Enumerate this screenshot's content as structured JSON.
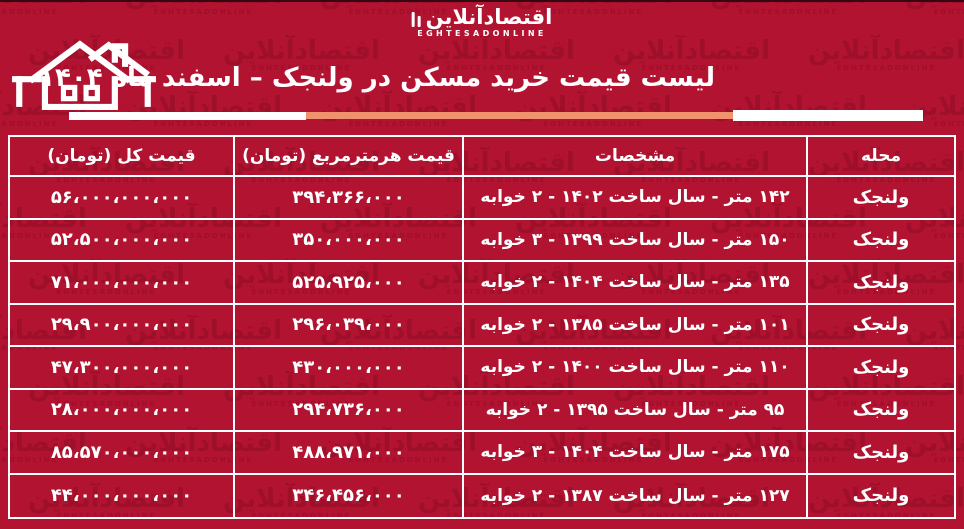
{
  "colors": {
    "background": "#B11331",
    "watermark": "#850B22",
    "border_and_text": "#FFFFFF",
    "accent_salmon": "#F0926E"
  },
  "logo": {
    "persian": "اقتصادآنلاین",
    "latin": "EGHTESADONLINE"
  },
  "watermark": {
    "persian": "اقتصادآنلاین",
    "latin": "EGHTESADONLINE"
  },
  "header": {
    "title": "لیست قیمت خرید مسکن در ولنجک – اسفند ماه ۱۴۰۴"
  },
  "table": {
    "columns": [
      "محله",
      "مشخصات",
      "قیمت هرمترمربع (تومان)",
      "قیمت کل (تومان)"
    ],
    "rows": [
      [
        "ولنجک",
        "۱۴۲ متر - سال ساخت ۱۴۰۲ - ۲ خوابه",
        "۳۹۴،۳۶۶،۰۰۰",
        "۵۶،۰۰۰،۰۰۰،۰۰۰"
      ],
      [
        "ولنجک",
        "۱۵۰ متر - سال ساخت ۱۳۹۹ - ۳ خوابه",
        "۳۵۰،۰۰۰،۰۰۰",
        "۵۲،۵۰۰،۰۰۰،۰۰۰"
      ],
      [
        "ولنجک",
        "۱۳۵ متر - سال ساخت ۱۴۰۴ - ۲ خوابه",
        "۵۲۵،۹۲۵،۰۰۰",
        "۷۱،۰۰۰،۰۰۰،۰۰۰"
      ],
      [
        "ولنجک",
        "۱۰۱ متر - سال ساخت ۱۳۸۵ - ۲ خوابه",
        "۲۹۶،۰۳۹،۰۰۰",
        "۲۹،۹۰۰،۰۰۰،۰۰۰"
      ],
      [
        "ولنجک",
        "۱۱۰ متر - سال ساخت ۱۴۰۰ - ۲ خوابه",
        "۴۳۰،۰۰۰،۰۰۰",
        "۴۷،۳۰۰،۰۰۰،۰۰۰"
      ],
      [
        "ولنجک",
        "۹۵ متر - سال ساخت ۱۳۹۵ - ۲ خوابه",
        "۲۹۴،۷۳۶،۰۰۰",
        "۲۸،۰۰۰،۰۰۰،۰۰۰"
      ],
      [
        "ولنجک",
        "۱۷۵ متر - سال ساخت ۱۴۰۴ - ۳ خوابه",
        "۴۸۸،۹۷۱،۰۰۰",
        "۸۵،۵۷۰،۰۰۰،۰۰۰"
      ],
      [
        "ولنجک",
        "۱۲۷ متر - سال ساخت ۱۳۸۷ - ۲ خوابه",
        "۳۴۶،۴۵۶،۰۰۰",
        "۴۴،۰۰۰،۰۰۰،۰۰۰"
      ]
    ]
  },
  "chart_data": {
    "type": "table",
    "title": "لیست قیمت خرید مسکن در ولنجک – اسفند ماه ۱۴۰۴",
    "columns": [
      "محله",
      "مشخصات",
      "قیمت هرمترمربع (تومان)",
      "قیمت کل (تومان)"
    ],
    "rows_numeric": [
      {
        "neighborhood": "ولنجک",
        "area_m2": 142,
        "year_built": 1402,
        "bedrooms": 2,
        "price_per_m2_toman": 394366000,
        "total_price_toman": 56000000000
      },
      {
        "neighborhood": "ولنجک",
        "area_m2": 150,
        "year_built": 1399,
        "bedrooms": 3,
        "price_per_m2_toman": 350000000,
        "total_price_toman": 52500000000
      },
      {
        "neighborhood": "ولنجک",
        "area_m2": 135,
        "year_built": 1404,
        "bedrooms": 2,
        "price_per_m2_toman": 525925000,
        "total_price_toman": 71000000000
      },
      {
        "neighborhood": "ولنجک",
        "area_m2": 101,
        "year_built": 1385,
        "bedrooms": 2,
        "price_per_m2_toman": 296039000,
        "total_price_toman": 29900000000
      },
      {
        "neighborhood": "ولنجک",
        "area_m2": 110,
        "year_built": 1400,
        "bedrooms": 2,
        "price_per_m2_toman": 430000000,
        "total_price_toman": 47300000000
      },
      {
        "neighborhood": "ولنجک",
        "area_m2": 95,
        "year_built": 1395,
        "bedrooms": 2,
        "price_per_m2_toman": 294736000,
        "total_price_toman": 28000000000
      },
      {
        "neighborhood": "ولنجک",
        "area_m2": 175,
        "year_built": 1404,
        "bedrooms": 3,
        "price_per_m2_toman": 488971000,
        "total_price_toman": 85570000000
      },
      {
        "neighborhood": "ولنجک",
        "area_m2": 127,
        "year_built": 1387,
        "bedrooms": 2,
        "price_per_m2_toman": 346456000,
        "total_price_toman": 44000000000
      }
    ]
  }
}
